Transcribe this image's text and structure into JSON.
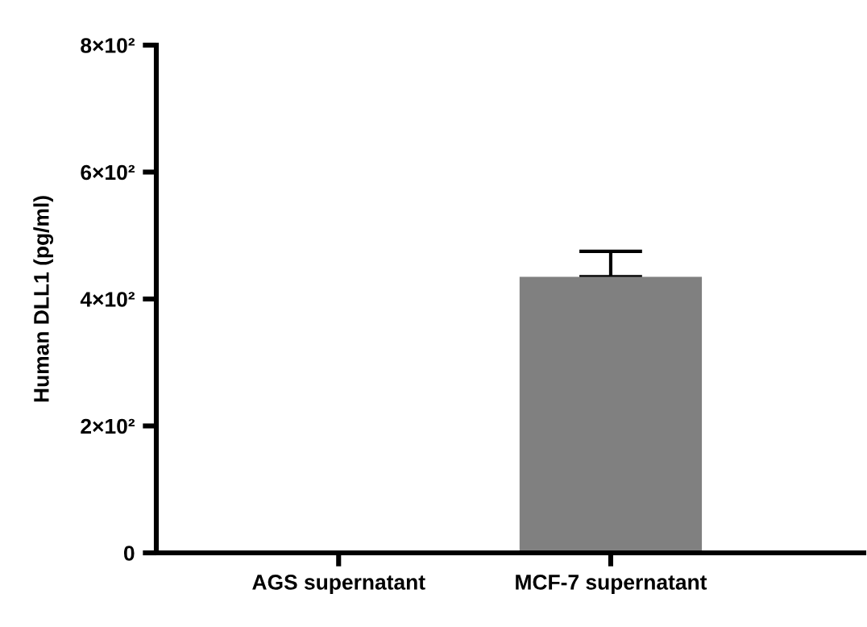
{
  "chart_data": {
    "type": "bar",
    "ylabel": "Human DLL1 (pg/ml)",
    "categories": [
      "AGS supernatant",
      "MCF-7 supernatant"
    ],
    "values": [
      0,
      435
    ],
    "color": "#808080",
    "errors": [
      null,
      [
        435,
        475
      ]
    ],
    "ylim": [
      0,
      800
    ],
    "yticks": [
      0,
      {
        "value": 200,
        "label": "2×10²"
      },
      {
        "value": 400,
        "label": "4×10²"
      },
      {
        "value": 600,
        "label": "6×10²"
      },
      {
        "value": 800,
        "label": "8×10²"
      }
    ],
    "grid": false,
    "legend": false
  }
}
